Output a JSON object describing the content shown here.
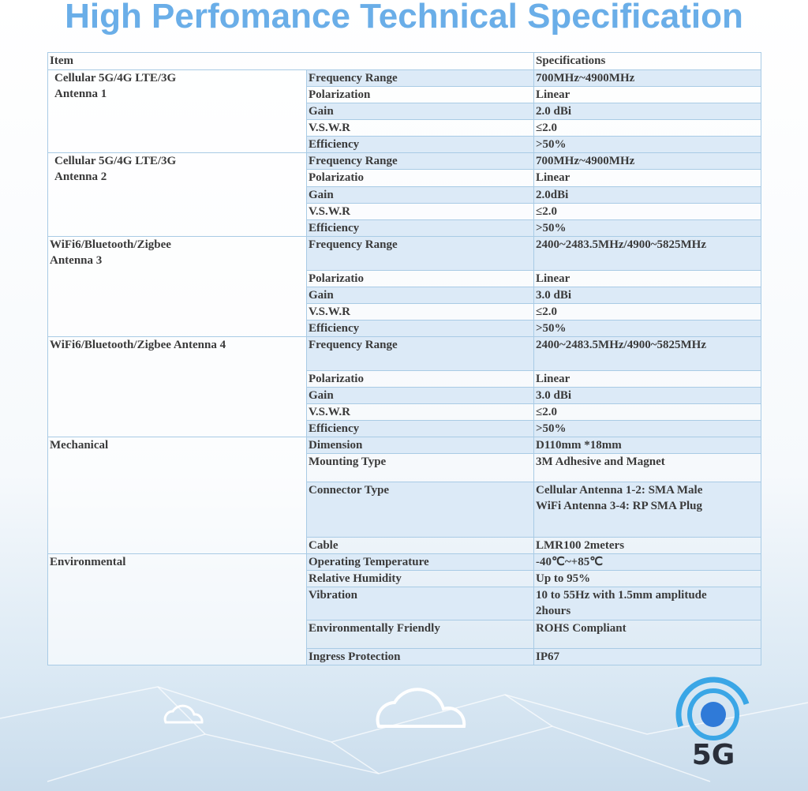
{
  "title": "High Perfomance Technical Specification",
  "table": {
    "header": [
      "Item",
      "Specifications"
    ],
    "groups": [
      {
        "item": [
          "Cellular 5G/4G LTE/3G",
          "Antenna 1"
        ],
        "rows": [
          [
            "Frequency Range",
            [
              "700MHz~4900MHz"
            ]
          ],
          [
            "Polarization",
            [
              "Linear"
            ]
          ],
          [
            "Gain",
            [
              "2.0 dBi"
            ]
          ],
          [
            "V.S.W.R",
            [
              "≤2.0"
            ]
          ],
          [
            "Efficiency",
            [
              ">50%"
            ]
          ]
        ]
      },
      {
        "item": [
          "Cellular 5G/4G LTE/3G",
          "Antenna 2"
        ],
        "rows": [
          [
            "Frequency Range",
            [
              "700MHz~4900MHz"
            ]
          ],
          [
            "Polarizatio",
            [
              "Linear"
            ]
          ],
          [
            "Gain",
            [
              "2.0dBi"
            ]
          ],
          [
            "V.S.W.R",
            [
              "≤2.0"
            ]
          ],
          [
            "Efficiency",
            [
              ">50%"
            ]
          ]
        ]
      },
      {
        "item": [
          "WiFi6/Bluetooth/Zigbee",
          "Antenna 3"
        ],
        "rows": [
          [
            "Frequency Range",
            [
              "2400~2483.5MHz/4900~5825MHz"
            ]
          ],
          [
            "Polarizatio",
            [
              "Linear"
            ]
          ],
          [
            "Gain",
            [
              "3.0 dBi"
            ]
          ],
          [
            "V.S.W.R",
            [
              "≤2.0"
            ]
          ],
          [
            "Efficiency",
            [
              ">50%"
            ]
          ]
        ]
      },
      {
        "item": [
          "WiFi6/Bluetooth/Zigbee  Antenna 4"
        ],
        "rows": [
          [
            "Frequency Range",
            [
              "2400~2483.5MHz/4900~5825MHz"
            ]
          ],
          [
            "Polarizatio",
            [
              "Linear"
            ]
          ],
          [
            "Gain",
            [
              "3.0 dBi"
            ]
          ],
          [
            "V.S.W.R",
            [
              "≤2.0"
            ]
          ],
          [
            "Efficiency",
            [
              ">50%"
            ]
          ]
        ]
      },
      {
        "item": [
          "Mechanical"
        ],
        "rows": [
          [
            "Dimension",
            [
              "D110mm *18mm"
            ]
          ],
          [
            "Mounting Type",
            [
              "3M Adhesive and Magnet"
            ]
          ],
          [
            "Connector Type",
            [
              "Cellular Antenna 1-2: SMA Male",
              "WiFi Antenna 3-4: RP SMA Plug"
            ]
          ],
          [
            "Cable",
            [
              "LMR100 2meters"
            ]
          ]
        ]
      },
      {
        "item": [
          "Environmental"
        ],
        "rows": [
          [
            "Operating Temperature",
            [
              "-40℃~+85℃"
            ]
          ],
          [
            "Relative Humidity",
            [
              "Up to 95%"
            ]
          ],
          [
            "Vibration",
            [
              "10 to 55Hz with 1.5mm amplitude",
              "2hours"
            ]
          ],
          [
            "Environmentally Friendly",
            [
              "ROHS Compliant"
            ]
          ],
          [
            "Ingress Protection",
            [
              "IP67"
            ]
          ]
        ]
      }
    ]
  },
  "badge": "5G"
}
